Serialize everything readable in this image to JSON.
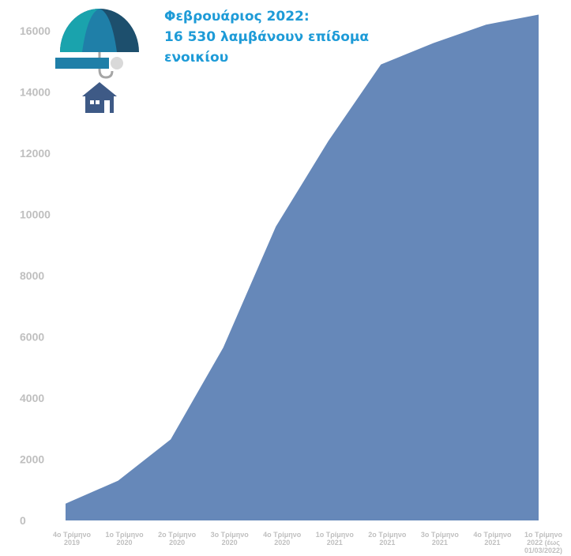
{
  "annotation": {
    "lines": [
      "Φεβρουάριος 2022:",
      "16 530 λαμβάνουν επίδομα",
      "ενοικίου"
    ],
    "color": "#1e9bd7"
  },
  "icons": [
    "umbrella-icon",
    "house-icon"
  ],
  "colors": {
    "area": "#6688b9",
    "tick_text": "#bfbfbf",
    "umbrella_teal": "#1aa3ad",
    "umbrella_blue": "#1f7fa8",
    "umbrella_dark": "#1d4f6d",
    "house": "#3e5a86"
  },
  "chart_data": {
    "type": "area",
    "title": "",
    "xlabel": "",
    "ylabel": "",
    "ylim": [
      0,
      16000
    ],
    "yticks": [
      0,
      2000,
      4000,
      6000,
      8000,
      10000,
      12000,
      14000,
      16000
    ],
    "grid": false,
    "categories": [
      [
        "4ο Τρίμηνο",
        "2019"
      ],
      [
        "1ο Τρίμηνο",
        "2020"
      ],
      [
        "2ο Τρίμηνο",
        "2020"
      ],
      [
        "3ο Τρίμηνο",
        "2020"
      ],
      [
        "4ο Τρίμηνο",
        "2020"
      ],
      [
        "1ο Τρίμηνο",
        "2021"
      ],
      [
        "2ο Τρίμηνο",
        "2021"
      ],
      [
        "3ο Τρίμηνο",
        "2021"
      ],
      [
        "4ο Τρίμηνο",
        "2021"
      ],
      [
        "1ο Τρίμηνο",
        "2022 (έως",
        "01/03/2022)"
      ]
    ],
    "values": [
      550,
      1300,
      2650,
      5650,
      9600,
      12400,
      14900,
      15600,
      16200,
      16530
    ]
  }
}
